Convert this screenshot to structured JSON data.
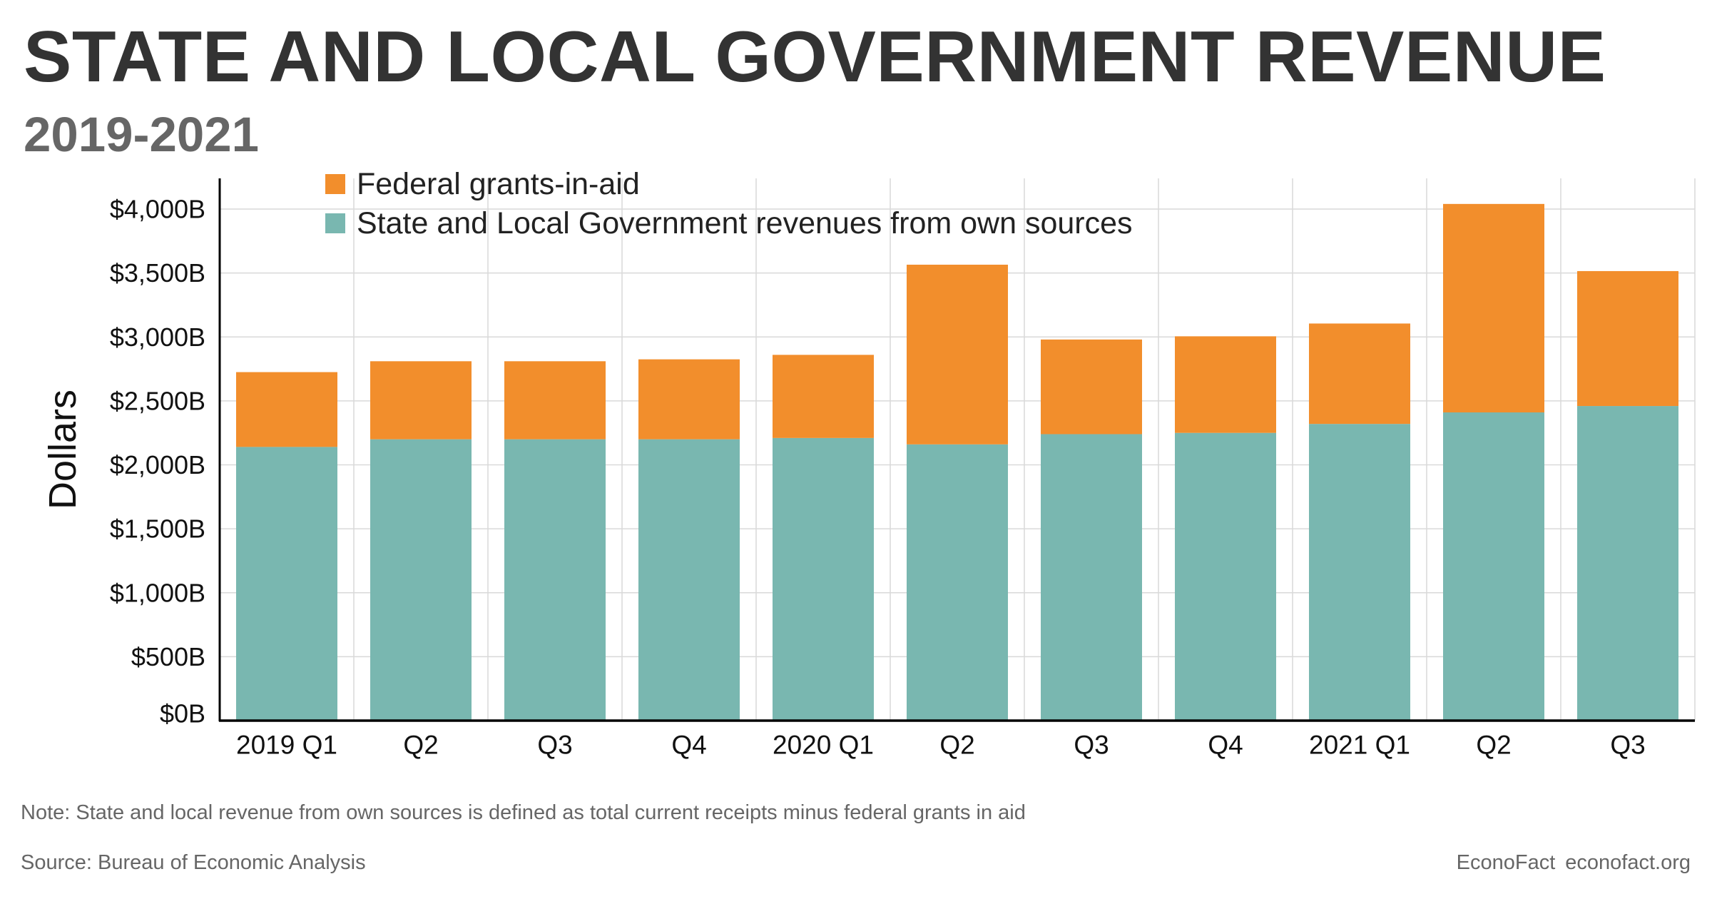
{
  "header": {
    "title": "STATE AND LOCAL GOVERNMENT REVENUE",
    "subtitle": "2019-2021"
  },
  "footer": {
    "note": "Note: State and local revenue from own sources is defined as total current receipts minus federal grants in aid",
    "source": "Source: Bureau of Economic Analysis",
    "brand": "EconoFact",
    "site": "econofact.org"
  },
  "chart_data": {
    "type": "bar",
    "stacked": true,
    "title": "STATE AND LOCAL GOVERNMENT REVENUE",
    "subtitle": "2019-2021",
    "xlabel": "",
    "ylabel": "Dollars",
    "ylim": [
      0,
      4200
    ],
    "grid": true,
    "legend_position": "top-left",
    "yticks": [
      0,
      500,
      1000,
      1500,
      2000,
      2500,
      3000,
      3500,
      4000
    ],
    "ytick_labels": [
      "$0B",
      "$500B",
      "$1,000B",
      "$1,500B",
      "$2,000B",
      "$2,500B",
      "$3,000B",
      "$3,500B",
      "$4,000B"
    ],
    "categories": [
      "2019 Q1",
      "Q2",
      "Q3",
      "Q4",
      "2020 Q1",
      "Q2",
      "Q3",
      "Q4",
      "2021 Q1",
      "Q2",
      "Q3"
    ],
    "series": [
      {
        "name": "State and Local Government revenues from own sources",
        "color": "#79b7b0",
        "values": [
          2140,
          2200,
          2200,
          2200,
          2210,
          2160,
          2240,
          2250,
          2320,
          2410,
          2460
        ]
      },
      {
        "name": "Federal grants-in-aid",
        "color": "#f28e2c",
        "values": [
          585,
          610,
          610,
          625,
          650,
          1405,
          740,
          755,
          785,
          1630,
          1055
        ]
      }
    ]
  }
}
